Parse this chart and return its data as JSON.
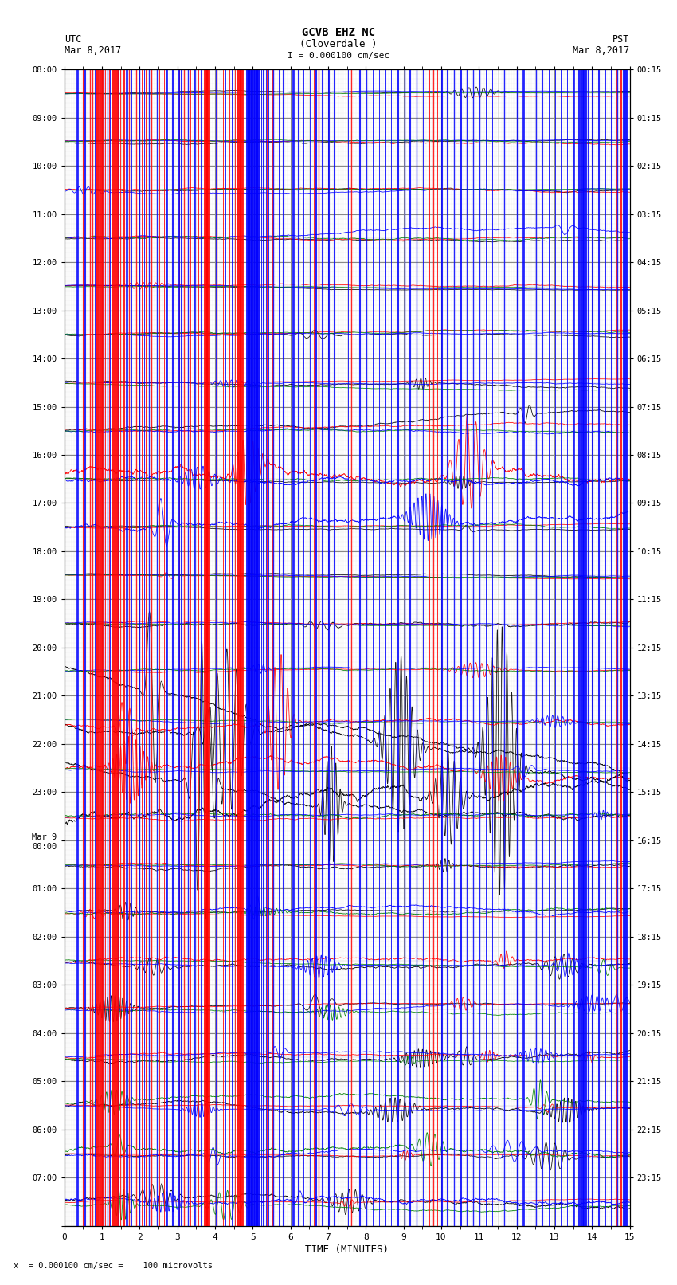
{
  "title_line1": "GCVB EHZ NC",
  "title_line2": "(Cloverdale )",
  "scale_label": "I = 0.000100 cm/sec",
  "left_header_line1": "UTC",
  "left_header_line2": "Mar 8,2017",
  "right_header_line1": "PST",
  "right_header_line2": "Mar 8,2017",
  "xlabel": "TIME (MINUTES)",
  "bottom_note": "x  = 0.000100 cm/sec =    100 microvolts",
  "xmin": 0,
  "xmax": 15,
  "xticks": [
    0,
    1,
    2,
    3,
    4,
    5,
    6,
    7,
    8,
    9,
    10,
    11,
    12,
    13,
    14,
    15
  ],
  "utc_times": [
    "08:00",
    "09:00",
    "10:00",
    "11:00",
    "12:00",
    "13:00",
    "14:00",
    "15:00",
    "16:00",
    "17:00",
    "18:00",
    "19:00",
    "20:00",
    "21:00",
    "22:00",
    "23:00",
    "Mar 9\n00:00",
    "01:00",
    "02:00",
    "03:00",
    "04:00",
    "05:00",
    "06:00",
    "07:00"
  ],
  "pst_times": [
    "00:15",
    "01:15",
    "02:15",
    "03:15",
    "04:15",
    "05:15",
    "06:15",
    "07:15",
    "08:15",
    "09:15",
    "10:15",
    "11:15",
    "12:15",
    "13:15",
    "14:15",
    "15:15",
    "16:15",
    "17:15",
    "18:15",
    "19:15",
    "20:15",
    "21:15",
    "22:15",
    "23:15"
  ],
  "n_rows": 24,
  "bg_color": "#ffffff",
  "major_grid_color": "#888888",
  "minor_grid_color": "#cccccc",
  "fine_grid_color": "#e8e8e8",
  "colors": [
    "black",
    "red",
    "blue",
    "green"
  ],
  "thick_red_vlines": [
    0.88,
    0.98,
    1.3,
    1.38,
    3.75,
    3.82,
    4.62,
    4.7
  ],
  "thick_blue_vlines": [
    4.87,
    4.93,
    5.0,
    5.07,
    5.14,
    13.72,
    13.8,
    14.88
  ],
  "thin_red_vlines": [
    0.3,
    0.52,
    0.68,
    0.75,
    1.08,
    1.18,
    1.48,
    1.58,
    1.72,
    1.9,
    2.05,
    2.18,
    2.3,
    2.52,
    2.65,
    2.9,
    3.05,
    3.18,
    3.35,
    3.55,
    4.05,
    4.22,
    4.38,
    4.52,
    5.38,
    5.52,
    6.62,
    6.75,
    7.62,
    9.68,
    9.78,
    9.9,
    14.65,
    14.78
  ],
  "thin_blue_vlines": [
    0.35,
    0.55,
    0.72,
    0.8,
    1.05,
    1.15,
    1.22,
    1.42,
    1.55,
    1.65,
    1.78,
    2.0,
    2.12,
    2.25,
    2.45,
    2.58,
    2.72,
    2.88,
    3.02,
    3.12,
    3.28,
    3.45,
    3.62,
    4.02,
    4.15,
    4.28,
    4.45,
    5.22,
    5.28,
    5.35,
    5.42,
    5.55,
    5.68,
    5.82,
    5.92,
    6.08,
    6.22,
    6.35,
    6.52,
    6.68,
    6.85,
    7.02,
    7.18,
    7.35,
    7.52,
    7.68,
    7.85,
    8.02,
    8.18,
    8.35,
    8.52,
    8.68,
    8.85,
    9.02,
    9.18,
    9.35,
    9.52,
    10.02,
    10.18,
    10.35,
    10.52,
    10.68,
    10.85,
    11.02,
    11.18,
    11.35,
    11.52,
    11.68,
    11.85,
    12.02,
    12.18,
    12.35,
    12.52,
    12.68,
    12.85,
    13.02,
    13.18,
    13.35,
    13.52,
    13.65,
    13.88,
    14.02,
    14.18,
    14.35,
    14.52,
    14.68,
    14.85
  ]
}
